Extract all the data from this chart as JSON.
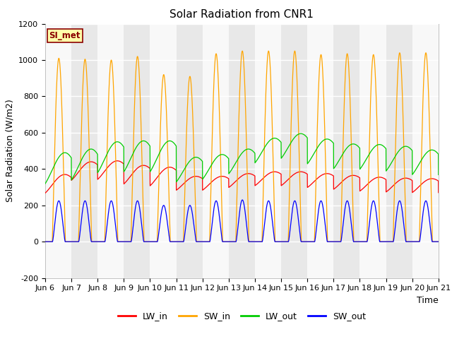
{
  "title": "Solar Radiation from CNR1",
  "xlabel": "Time",
  "ylabel": "Solar Radiation (W/m2)",
  "ylim": [
    -200,
    1200
  ],
  "start_day": 6,
  "num_days": 15,
  "xtick_labels": [
    "Jun 6",
    "Jun 7",
    "Jun 8",
    "Jun 9",
    "Jun 10",
    "Jun 11",
    "Jun 12",
    "Jun 13",
    "Jun 14",
    "Jun 15",
    "Jun 16",
    "Jun 17",
    "Jun 18",
    "Jun 19",
    "Jun 20",
    "Jun 21"
  ],
  "site_label": "SI_met",
  "colors": {
    "LW_in": "#ff0000",
    "SW_in": "#ffa500",
    "LW_out": "#00cc00",
    "SW_out": "#0000ff"
  },
  "band_day": "#e8e8e8",
  "band_night": "#f8f8f8",
  "yticks": [
    -200,
    0,
    200,
    400,
    600,
    800,
    1000,
    1200
  ],
  "title_fontsize": 11,
  "axis_fontsize": 9,
  "tick_fontsize": 8,
  "legend_fontsize": 9
}
